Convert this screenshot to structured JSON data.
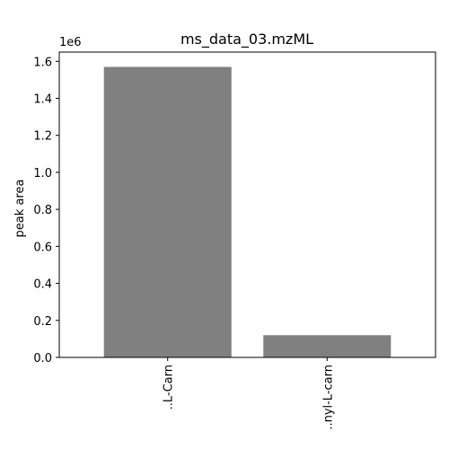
{
  "chart_data": {
    "type": "bar",
    "title": "ms_data_03.mzML",
    "xlabel": "",
    "ylabel": "peak area",
    "y_offset_label": "1e6",
    "categories": [
      "..L-Carn",
      "..nyl-L-carn"
    ],
    "values": [
      1570000,
      120000
    ],
    "ylim": [
      0,
      1650000
    ],
    "yticks": [
      0,
      200000,
      400000,
      600000,
      800000,
      1000000,
      1200000,
      1400000,
      1600000
    ],
    "ytick_labels": [
      "0.0",
      "0.2",
      "0.4",
      "0.6",
      "0.8",
      "1.0",
      "1.2",
      "1.4",
      "1.6"
    ],
    "bar_color": "#808080",
    "grid": false,
    "legend": "none"
  }
}
